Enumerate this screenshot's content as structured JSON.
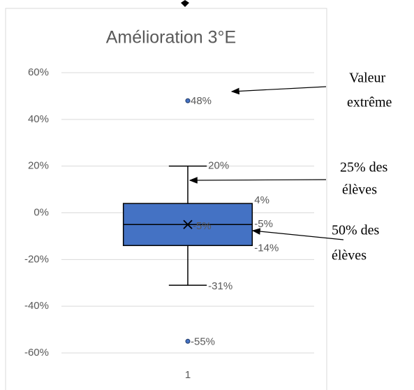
{
  "chart_data": {
    "type": "box",
    "title": "Amélioration 3°E",
    "categories": [
      "1"
    ],
    "color": "#4472c4",
    "grid": true,
    "ylim": [
      -60,
      60
    ],
    "yticks": [
      {
        "value": -60,
        "label": "-60%"
      },
      {
        "value": -40,
        "label": "-40%"
      },
      {
        "value": -20,
        "label": "-20%"
      },
      {
        "value": 0,
        "label": "0%"
      },
      {
        "value": 20,
        "label": "20%"
      },
      {
        "value": 40,
        "label": "40%"
      },
      {
        "value": 60,
        "label": "60%"
      }
    ],
    "boxes": [
      {
        "min": -31,
        "q1": -14,
        "median": -5,
        "q3": 4,
        "max": 20,
        "mean": -5,
        "outliers": [
          48,
          -55
        ],
        "value_labels": {
          "min": "-31%",
          "q1": "-14%",
          "median": "-5%",
          "q3": "4%",
          "max": "20%",
          "mean": "-5%",
          "outliers": [
            "48%",
            "-55%"
          ]
        }
      }
    ],
    "annotations": [
      {
        "lines": [
          "Valeur",
          "extrême"
        ]
      },
      {
        "lines": [
          "25% des",
          "élèves"
        ]
      },
      {
        "lines": [
          "50% des",
          "élèves"
        ]
      }
    ]
  }
}
